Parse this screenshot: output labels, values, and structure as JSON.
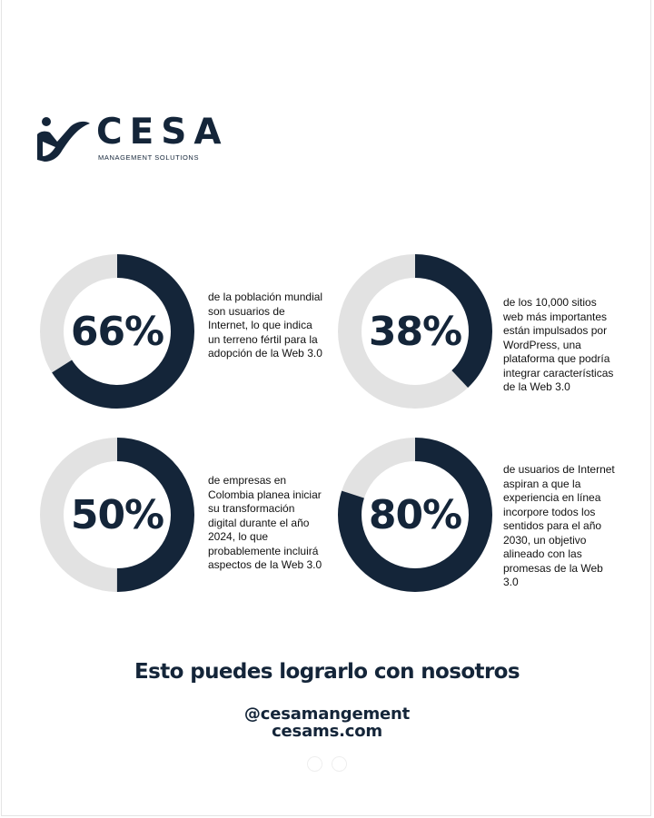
{
  "brand": {
    "name": "CESA",
    "tagline": "MANAGEMENT SOLUTIONS",
    "primary_color": "#142539",
    "track_color": "#e2e2e2"
  },
  "stats": [
    {
      "percent_label": "66%",
      "value": 0.66,
      "description": "de la población mundial son usuarios de Internet, lo que indica un terreno fértil para la adopción de la Web 3.0"
    },
    {
      "percent_label": "38%",
      "value": 0.38,
      "description": "de los 10,000 sitios web más importantes están impulsados por WordPress, una plataforma que podría integrar características de la Web 3.0"
    },
    {
      "percent_label": "50%",
      "value": 0.5,
      "description": "de empresas en Colombia planea iniciar su transformación digital durante el año 2024, lo que probablemente incluirá aspectos de la Web 3.0"
    },
    {
      "percent_label": "80%",
      "value": 0.8,
      "description": "de usuarios de Internet aspiran a que la experiencia en línea incorpore todos los sentidos para el año 2030, un objetivo alineado con las promesas de la Web 3.0"
    }
  ],
  "footer": {
    "cta": "Esto puedes lograrlo con nosotros",
    "handle": "@cesamangement",
    "website": "cesams.com"
  }
}
